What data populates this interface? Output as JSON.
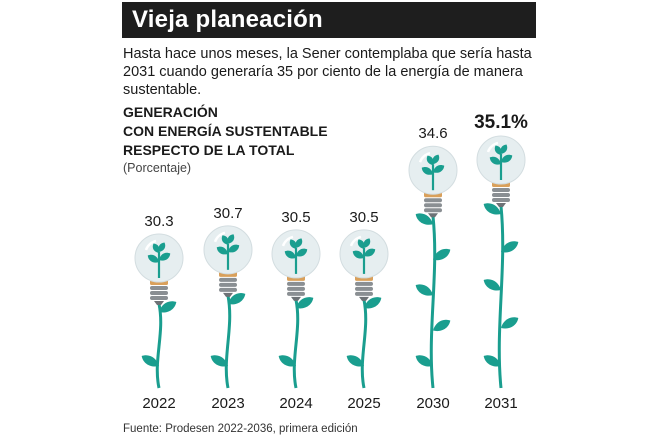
{
  "header": {
    "title": "Vieja planeación",
    "subtitle": "Hasta hace unos meses, la Sener contemplaba que sería hasta 2031 cuando generaría 35 por ciento de la energía de manera sustentable."
  },
  "chart_data": {
    "type": "bar",
    "title": [
      "GENERACIÓN",
      "CON ENERGÍA SUSTENTABLE",
      "RESPECTO DE LA TOTAL"
    ],
    "unit_label": "(Porcentaje)",
    "categories": [
      "2022",
      "2023",
      "2024",
      "2025",
      "2030",
      "2031"
    ],
    "values": [
      30.3,
      30.7,
      30.5,
      30.5,
      34.6,
      35.1
    ],
    "value_labels": [
      "30.3",
      "30.7",
      "30.5",
      "30.5",
      "34.6",
      "35.1%"
    ],
    "highlight_last": true
  },
  "footer": {
    "source": "Fuente: Prodesen 2022-2036, primera edición"
  },
  "colors": {
    "title_bar": "#1e1e1e",
    "stem": "#1a9e8f",
    "bulb": "#e6eef0",
    "bulb_base_top": "#d9a05b",
    "bulb_base": "#8a8f93"
  }
}
